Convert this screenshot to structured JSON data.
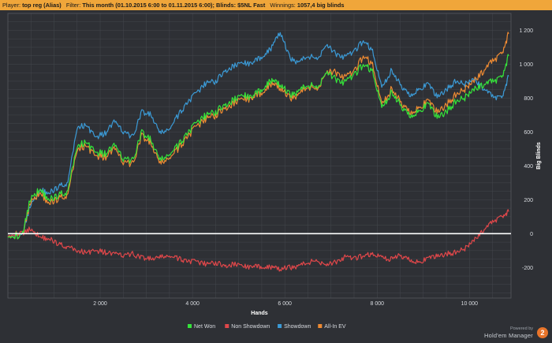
{
  "header": {
    "player_label": "Player:",
    "player_value": "top reg (Alias)",
    "filter_label": "Filter:",
    "filter_value": "This month (01.10.2015 6:00 to 01.11.2015 6:00); Blinds: $5NL Fast",
    "winnings_label": "Winnings:",
    "winnings_value": "1057,4 big blinds"
  },
  "footer": {
    "powered_by": "Powered by",
    "brand": "Hold'em Manager",
    "brand_badge": "2"
  },
  "colors": {
    "background": "#2e3035",
    "header_bar": "#f0a63a",
    "grid": "#44474d",
    "zero_line": "#ffffff",
    "net_won": "#35e33a",
    "non_showdown": "#e0474a",
    "showdown": "#3b9ad6",
    "all_in_ev": "#ee8a32"
  },
  "chart_data": {
    "type": "line",
    "xlabel": "Hands",
    "ylabel": "Big Blinds",
    "xlim": [
      0,
      10900
    ],
    "ylim": [
      -380,
      1300
    ],
    "x_ticks": [
      2000,
      4000,
      6000,
      8000,
      10000
    ],
    "x_tick_labels": [
      "2 000",
      "4 000",
      "6 000",
      "8 000",
      "10 000"
    ],
    "y_ticks": [
      -200,
      0,
      200,
      400,
      600,
      800,
      1000,
      1200
    ],
    "y_tick_labels": [
      "-200",
      "0",
      "200",
      "400",
      "600",
      "800",
      "1 000",
      "1 200"
    ],
    "grid": true,
    "legend_position": "bottom-center",
    "series": [
      {
        "name": "Net Won",
        "color": "#35e33a",
        "x": [
          0,
          300,
          500,
          700,
          900,
          1100,
          1300,
          1500,
          1700,
          1900,
          2100,
          2300,
          2500,
          2700,
          2900,
          3100,
          3300,
          3500,
          3700,
          3900,
          4100,
          4300,
          4500,
          4700,
          4900,
          5100,
          5300,
          5500,
          5700,
          5900,
          6100,
          6300,
          6500,
          6700,
          6900,
          7100,
          7300,
          7500,
          7700,
          7900,
          8100,
          8300,
          8500,
          8700,
          8900,
          9100,
          9300,
          9500,
          9700,
          9900,
          10100,
          10300,
          10500,
          10700,
          10850
        ],
        "y": [
          0,
          -20,
          220,
          260,
          200,
          230,
          250,
          520,
          540,
          480,
          470,
          520,
          440,
          430,
          600,
          550,
          430,
          470,
          520,
          600,
          650,
          700,
          720,
          760,
          790,
          820,
          800,
          860,
          900,
          880,
          820,
          840,
          880,
          860,
          960,
          910,
          890,
          930,
          1000,
          960,
          740,
          830,
          760,
          700,
          720,
          760,
          690,
          720,
          780,
          800,
          850,
          880,
          900,
          920,
          1050
        ]
      },
      {
        "name": "Non Showdown",
        "color": "#e0474a",
        "x": [
          0,
          300,
          500,
          700,
          900,
          1100,
          1300,
          1500,
          1700,
          1900,
          2100,
          2300,
          2500,
          2700,
          2900,
          3100,
          3300,
          3500,
          3700,
          3900,
          4100,
          4300,
          4500,
          4700,
          4900,
          5100,
          5300,
          5500,
          5700,
          5900,
          6100,
          6300,
          6500,
          6700,
          6900,
          7100,
          7300,
          7500,
          7700,
          7900,
          8100,
          8300,
          8500,
          8700,
          8900,
          9100,
          9300,
          9500,
          9700,
          9900,
          10100,
          10300,
          10500,
          10700,
          10850
        ],
        "y": [
          0,
          0,
          30,
          -20,
          -30,
          -60,
          -80,
          -100,
          -110,
          -100,
          -110,
          -120,
          -130,
          -120,
          -140,
          -150,
          -140,
          -130,
          -150,
          -160,
          -170,
          -180,
          -170,
          -190,
          -180,
          -190,
          -200,
          -190,
          -200,
          -210,
          -200,
          -190,
          -170,
          -160,
          -180,
          -170,
          -140,
          -150,
          -130,
          -120,
          -140,
          -150,
          -130,
          -150,
          -170,
          -150,
          -130,
          -120,
          -110,
          -90,
          -40,
          20,
          70,
          100,
          130
        ]
      },
      {
        "name": "Showdown",
        "color": "#3b9ad6",
        "x": [
          0,
          300,
          500,
          700,
          900,
          1100,
          1300,
          1500,
          1700,
          1900,
          2100,
          2300,
          2500,
          2700,
          2900,
          3100,
          3300,
          3500,
          3700,
          3900,
          4100,
          4300,
          4500,
          4700,
          4900,
          5100,
          5300,
          5500,
          5700,
          5900,
          6100,
          6300,
          6500,
          6700,
          6900,
          7100,
          7300,
          7500,
          7700,
          7900,
          8100,
          8300,
          8500,
          8700,
          8900,
          9100,
          9300,
          9500,
          9700,
          9900,
          10100,
          10300,
          10500,
          10700,
          10850
        ],
        "y": [
          0,
          -20,
          180,
          260,
          240,
          280,
          300,
          630,
          640,
          570,
          590,
          660,
          600,
          570,
          720,
          700,
          590,
          620,
          700,
          780,
          830,
          890,
          900,
          960,
          990,
          1010,
          1000,
          1050,
          1090,
          1190,
          1040,
          1010,
          1050,
          1030,
          1120,
          1060,
          1040,
          1070,
          1140,
          1080,
          860,
          960,
          880,
          820,
          850,
          880,
          810,
          850,
          900,
          880,
          910,
          860,
          810,
          800,
          930
        ]
      },
      {
        "name": "All-In EV",
        "color": "#ee8a32",
        "x": [
          0,
          300,
          500,
          700,
          900,
          1100,
          1300,
          1500,
          1700,
          1900,
          2100,
          2300,
          2500,
          2700,
          2900,
          3100,
          3300,
          3500,
          3700,
          3900,
          4100,
          4300,
          4500,
          4700,
          4900,
          5100,
          5300,
          5500,
          5700,
          5900,
          6100,
          6300,
          6500,
          6700,
          6900,
          7100,
          7300,
          7500,
          7700,
          7900,
          8100,
          8300,
          8500,
          8700,
          8900,
          9100,
          9300,
          9500,
          9700,
          9900,
          10100,
          10300,
          10500,
          10700,
          10850
        ],
        "y": [
          0,
          -20,
          200,
          240,
          180,
          210,
          230,
          500,
          520,
          460,
          450,
          500,
          420,
          410,
          580,
          530,
          410,
          450,
          500,
          580,
          630,
          680,
          700,
          740,
          770,
          800,
          790,
          840,
          880,
          860,
          800,
          820,
          870,
          850,
          960,
          950,
          920,
          950,
          1050,
          1000,
          760,
          850,
          780,
          720,
          740,
          780,
          720,
          760,
          820,
          850,
          900,
          960,
          1020,
          1060,
          1180
        ]
      }
    ]
  }
}
